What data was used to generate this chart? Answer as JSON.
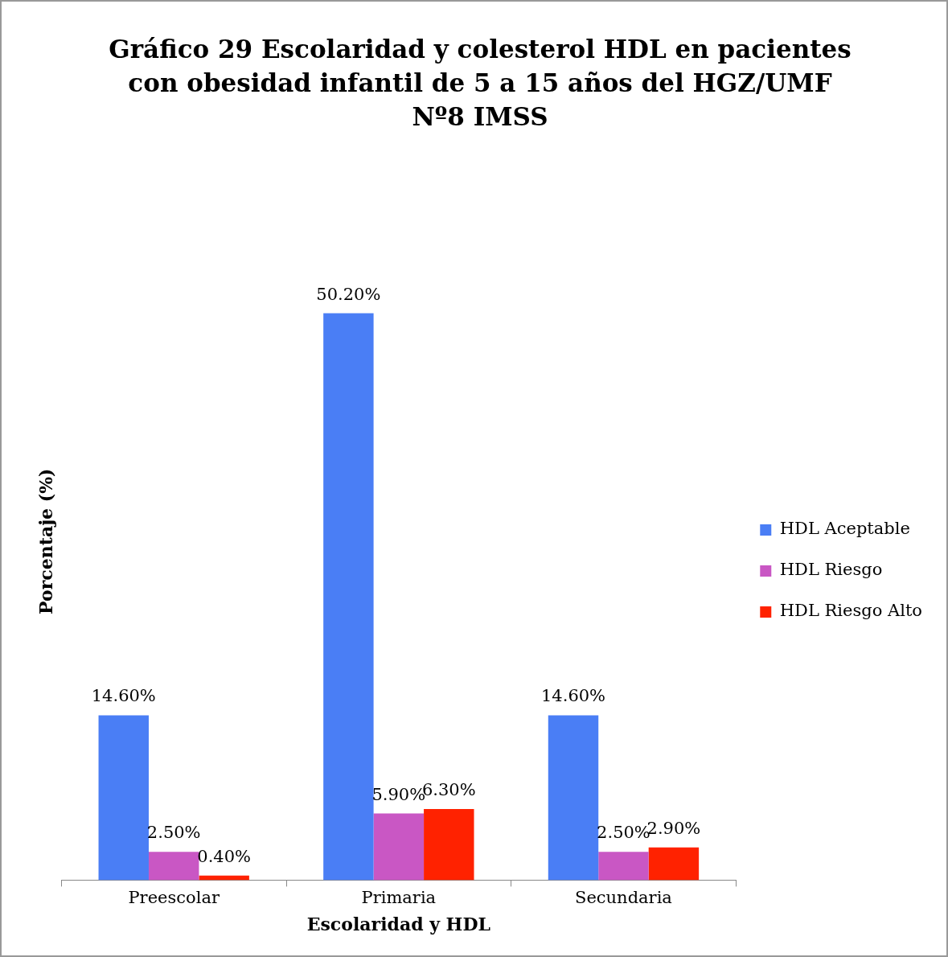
{
  "chart_data": {
    "type": "bar",
    "title": "Gráfico 29 Escolaridad y colesterol HDL en pacientes con obesidad infantil de 5 a 15 años del HGZ/UMF Nº8 IMSS",
    "xlabel": "Escolaridad y HDL",
    "ylabel": "Porcentaje (%)",
    "categories": [
      "Preescolar",
      "Primaria",
      "Secundaria"
    ],
    "series": [
      {
        "name": "HDL Aceptable",
        "color": "#4a7ef5",
        "values": [
          14.6,
          50.2,
          14.6
        ],
        "value_labels": [
          "14.60%",
          "50.20%",
          "14.60%"
        ]
      },
      {
        "name": "HDL Riesgo",
        "color": "#c957c4",
        "values": [
          2.5,
          5.9,
          2.5
        ],
        "value_labels": [
          "2.50%",
          "5.90%",
          "2.50%"
        ]
      },
      {
        "name": "HDL Riesgo Alto",
        "color": "#ff2200",
        "values": [
          0.4,
          6.3,
          2.9
        ],
        "value_labels": [
          "0.40%",
          "6.30%",
          "2.90%"
        ]
      }
    ],
    "legend": "right",
    "grid": false,
    "tick_labels": "x"
  }
}
